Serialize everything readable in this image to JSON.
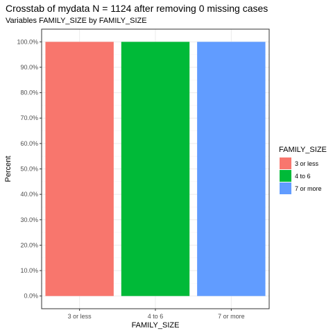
{
  "colors": {
    "panel_border": "#333333",
    "grid_major": "#ebebeb",
    "grid_minor": "#f5f5f5"
  },
  "chart_data": {
    "type": "bar",
    "title": "Crosstab of mydata N = 1124 after removing 0 missing cases",
    "subtitle": "Variables FAMILY_SIZE by FAMILY_SIZE",
    "xlabel": "FAMILY_SIZE",
    "ylabel": "Percent",
    "categories": [
      "3 or less",
      "4 to 6",
      "7 or more"
    ],
    "values": [
      100,
      100,
      100
    ],
    "colors": [
      "#f8766d",
      "#00ba38",
      "#619cff"
    ],
    "ylim": [
      0,
      100
    ],
    "yticks": [
      "0.0%",
      "10.0%",
      "20.0%",
      "30.0%",
      "40.0%",
      "50.0%",
      "60.0%",
      "70.0%",
      "80.0%",
      "90.0%",
      "100.0%"
    ],
    "grid": true,
    "legend": {
      "title": "FAMILY_SIZE",
      "position": "right",
      "items": [
        "3 or less",
        "4 to 6",
        "7 or more"
      ]
    }
  }
}
